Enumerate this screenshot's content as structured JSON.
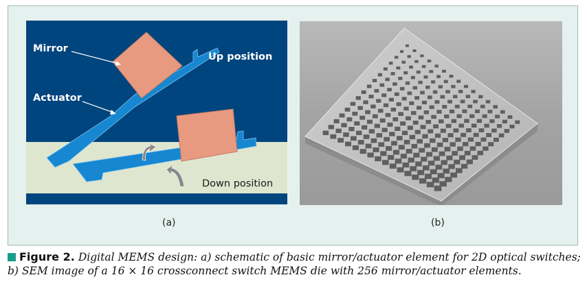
{
  "panel_a": {
    "label_mirror": "Mirror",
    "label_actuator": "Actuator",
    "label_up": "Up position",
    "label_down": "Down position",
    "colors": {
      "background": "#00457e",
      "substrate": "#dfe6cf",
      "actuator": "#1687d0",
      "mirror": "#e89a80"
    }
  },
  "panel_b": {
    "image": "grayscale-sem-micrograph",
    "grid": "16 × 16"
  },
  "sub_labels": {
    "a": "(a)",
    "b": "(b)"
  },
  "caption": {
    "bold": "Figure 2.",
    "text": "Digital MEMS design: a) schematic of basic mirror/actuator element for 2D optical switches; b) SEM image of a 16 × 16 crossconnect switch MEMS die with 256 mirror/actuator elements.",
    "marker_color": "#1a9c8c"
  }
}
